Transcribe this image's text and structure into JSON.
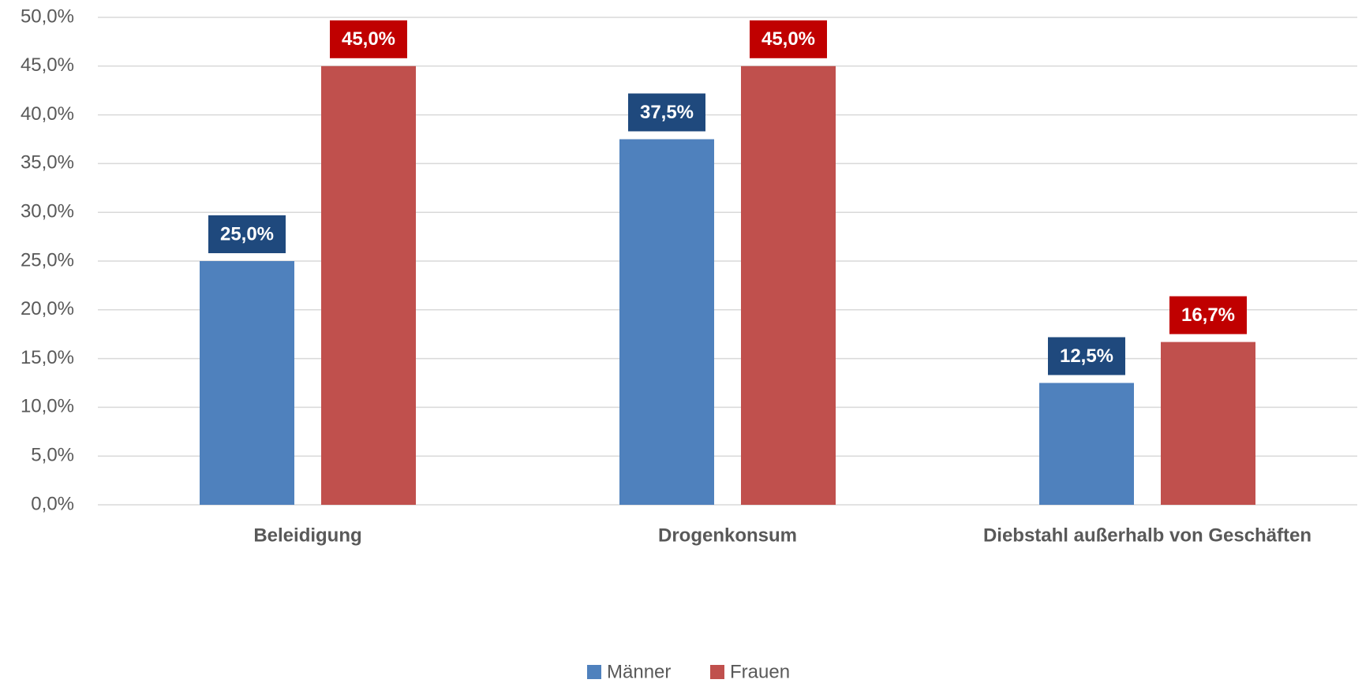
{
  "chart_data": {
    "type": "bar",
    "categories": [
      "Beleidigung",
      "Drogenkonsum",
      "Diebstahl außerhalb von Geschäften"
    ],
    "series": [
      {
        "name": "Männer",
        "color": "#4f81bd",
        "label_color": "#1f497d",
        "values": [
          25,
          37.5,
          12.5
        ],
        "value_labels": [
          "25,0%",
          "37,5%",
          "12,5%"
        ]
      },
      {
        "name": "Frauen",
        "color": "#c0504d",
        "label_color": "#c00000",
        "values": [
          45,
          45,
          16.7
        ],
        "value_labels": [
          "45,0%",
          "45,0%",
          "16,7%"
        ]
      }
    ],
    "ylim": [
      0,
      50
    ],
    "yticks": [
      {
        "value": 0,
        "label": "0,0%"
      },
      {
        "value": 5,
        "label": "5,0%"
      },
      {
        "value": 10,
        "label": "10,0%"
      },
      {
        "value": 15,
        "label": "15,0%"
      },
      {
        "value": 20,
        "label": "20,0%"
      },
      {
        "value": 25,
        "label": "25,0%"
      },
      {
        "value": 30,
        "label": "30,0%"
      },
      {
        "value": 35,
        "label": "35,0%"
      },
      {
        "value": 40,
        "label": "40,0%"
      },
      {
        "value": 45,
        "label": "45,0%"
      },
      {
        "value": 50,
        "label": "50,0%"
      }
    ],
    "grid": true,
    "legend": "bottom"
  }
}
